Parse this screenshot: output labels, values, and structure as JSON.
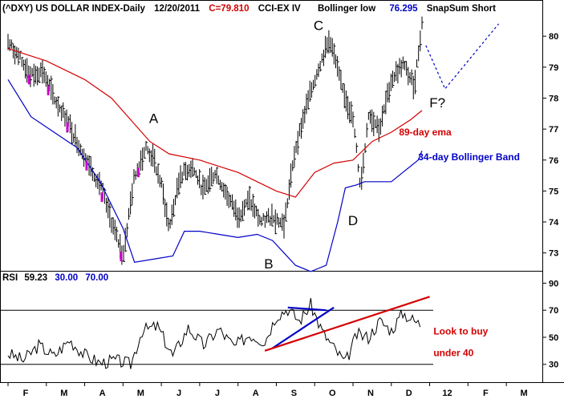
{
  "header": {
    "symbol": "(^DXY) US DOLLAR INDEX-Daily",
    "date": "12/20/2011",
    "close": "C=79.810",
    "indicator": "CCI-EX IV",
    "bollinger_label": "Bollinger low",
    "bollinger_value": "76.295",
    "snapsum": "SnapSum Short"
  },
  "rsi_header": {
    "label": "RSI",
    "value": "59.23",
    "low": "30.00",
    "high": "70.00"
  },
  "colors": {
    "price": "#000000",
    "ema": "#d40000",
    "bollinger": "#0000c8",
    "magenta": "#cc00cc"
  },
  "chart_data": [
    {
      "type": "bar",
      "panel": "price",
      "y_ticks": [
        "80",
        "79",
        "78",
        "77",
        "76",
        "75",
        "74",
        "73"
      ],
      "x_ticks": [
        "F",
        "M",
        "A",
        "M",
        "J",
        "J",
        "A",
        "S",
        "O",
        "N",
        "D",
        "12",
        "F",
        "M"
      ],
      "ylim": [
        72.5,
        80.6
      ],
      "x_month_span": [
        0.0,
        13.5
      ],
      "series": [
        {
          "name": "(^DXY) US DOLLAR INDEX-Daily",
          "x": [
            0.0,
            0.3,
            0.6,
            0.9,
            1.2,
            1.5,
            1.8,
            2.1,
            2.4,
            2.7,
            3.0,
            3.3,
            3.6,
            3.8,
            4.0,
            4.2,
            4.5,
            4.8,
            5.1,
            5.4,
            5.7,
            6.0,
            6.3,
            6.6,
            6.9,
            7.2,
            7.5,
            7.8,
            8.1,
            8.4,
            8.7,
            9.0,
            9.2,
            9.4,
            9.7,
            10.0,
            10.3,
            10.6,
            10.8
          ],
          "y": [
            79.8,
            79.3,
            78.7,
            78.9,
            78.0,
            77.4,
            76.6,
            75.9,
            75.2,
            74.0,
            72.9,
            75.5,
            76.4,
            76.0,
            75.2,
            73.8,
            75.5,
            75.8,
            75.0,
            75.6,
            74.9,
            74.2,
            74.7,
            74.0,
            74.2,
            73.9,
            76.4,
            77.8,
            79.0,
            79.9,
            78.4,
            77.3,
            75.1,
            77.5,
            77.0,
            78.6,
            79.1,
            78.4,
            80.4
          ]
        },
        {
          "name": "89-day ema",
          "x": [
            0.0,
            1.0,
            2.0,
            2.7,
            3.2,
            3.7,
            4.2,
            5.0,
            6.0,
            6.5,
            7.0,
            7.5,
            8.0,
            8.5,
            9.0,
            9.5,
            10.0,
            10.5,
            10.8
          ],
          "y": [
            79.6,
            79.2,
            78.6,
            78.0,
            77.3,
            76.6,
            76.2,
            76.0,
            75.6,
            75.3,
            75.0,
            74.8,
            75.6,
            75.9,
            76.0,
            76.6,
            76.9,
            77.3,
            77.6
          ]
        },
        {
          "name": "34-day Bollinger Band",
          "x": [
            0.0,
            0.6,
            1.2,
            1.8,
            2.4,
            3.0,
            3.3,
            3.8,
            4.3,
            4.6,
            5.0,
            5.5,
            6.0,
            6.5,
            6.9,
            7.2,
            7.5,
            7.9,
            8.3,
            8.6,
            8.8,
            9.1,
            9.3,
            9.5,
            10.0,
            10.3,
            10.5,
            10.7,
            10.8
          ],
          "y": [
            78.6,
            77.4,
            76.9,
            76.4,
            75.3,
            73.8,
            72.7,
            72.8,
            72.9,
            73.7,
            73.7,
            73.6,
            73.5,
            73.6,
            73.4,
            73.0,
            72.6,
            72.4,
            72.6,
            74.0,
            75.1,
            75.2,
            75.3,
            75.3,
            75.3,
            75.6,
            75.8,
            76.0,
            76.3
          ]
        }
      ],
      "projection": {
        "x": [
          10.9,
          11.4,
          12.8
        ],
        "y": [
          79.7,
          78.3,
          80.4
        ]
      },
      "wave_labels": [
        {
          "text": "A",
          "x": 3.8,
          "y": 77.2
        },
        {
          "text": "B",
          "x": 6.8,
          "y": 72.5
        },
        {
          "text": "C",
          "x": 8.1,
          "y": 80.2
        },
        {
          "text": "D",
          "x": 9.0,
          "y": 73.9
        },
        {
          "text": "F?",
          "x": 11.2,
          "y": 77.7
        }
      ],
      "annotations": [
        {
          "text": "89-day ema",
          "color": "ema",
          "x": 10.2,
          "y": 76.8
        },
        {
          "text": "34-day Bollinger Band",
          "color": "bollinger",
          "x": 10.7,
          "y": 76.0
        }
      ]
    },
    {
      "type": "line",
      "panel": "rsi",
      "y_ticks": [
        "90",
        "70",
        "50",
        "30"
      ],
      "ylim": [
        18,
        95
      ],
      "levels": [
        70,
        30
      ],
      "series": [
        {
          "name": "RSI",
          "x": [
            0.0,
            0.4,
            0.8,
            1.2,
            1.6,
            2.0,
            2.4,
            2.8,
            3.2,
            3.5,
            3.9,
            4.3,
            4.7,
            5.1,
            5.5,
            5.9,
            6.3,
            6.7,
            7.0,
            7.3,
            7.6,
            7.9,
            8.2,
            8.5,
            8.8,
            9.1,
            9.4,
            9.7,
            10.0,
            10.3,
            10.6,
            10.8
          ],
          "y": [
            38,
            33,
            44,
            36,
            48,
            37,
            31,
            33,
            30,
            55,
            58,
            36,
            57,
            44,
            56,
            43,
            52,
            47,
            66,
            71,
            62,
            74,
            54,
            42,
            31,
            52,
            50,
            62,
            55,
            68,
            62,
            59
          ]
        }
      ],
      "trendlines": [
        {
          "color": "bollinger",
          "x": [
            7.3,
            8.3
          ],
          "y": [
            72,
            70
          ]
        },
        {
          "color": "bollinger",
          "x": [
            6.9,
            8.5
          ],
          "y": [
            42,
            72
          ]
        },
        {
          "color": "ema",
          "x": [
            6.7,
            11.0
          ],
          "y": [
            40,
            80
          ]
        }
      ],
      "annotations": [
        {
          "text": "Look to buy",
          "color": "ema",
          "x": 11.1,
          "y": 52
        },
        {
          "text": "under 40",
          "color": "ema",
          "x": 11.1,
          "y": 36
        }
      ]
    }
  ]
}
